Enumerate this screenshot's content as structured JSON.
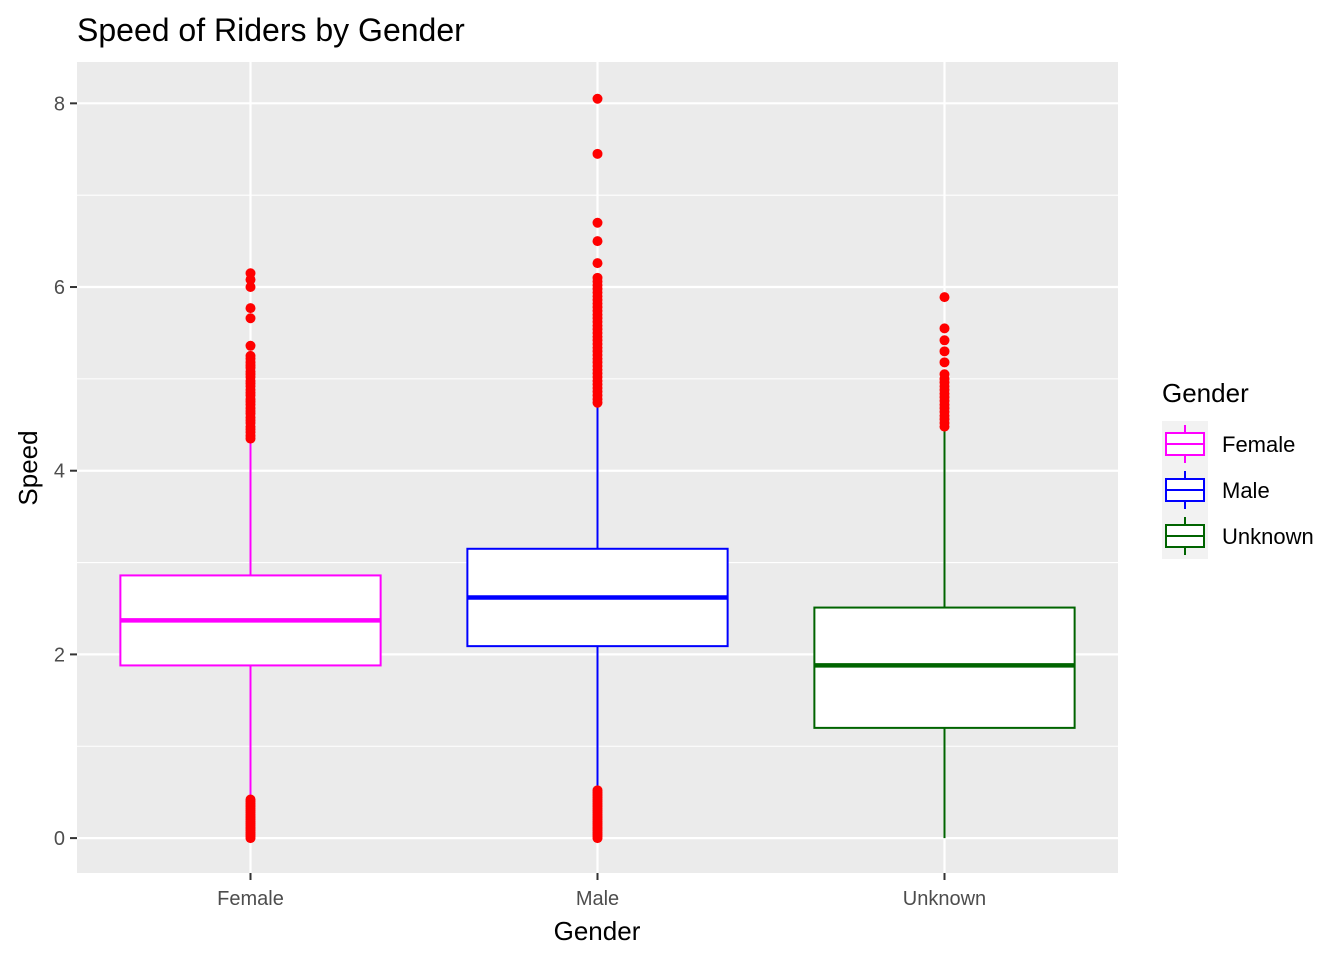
{
  "chart_data": {
    "type": "boxplot",
    "title": "Speed of Riders by Gender",
    "xlabel": "Gender",
    "ylabel": "Speed",
    "categories": [
      "Female",
      "Male",
      "Unknown"
    ],
    "ylim": [
      -0.38,
      8.45
    ],
    "yticks": [
      0,
      2,
      4,
      6,
      8
    ],
    "grid": true,
    "legend": {
      "title": "Gender",
      "position": "right",
      "entries": [
        "Female",
        "Male",
        "Unknown"
      ]
    },
    "outlier_color": "#ff0000",
    "panel_background": "#ebebeb",
    "series": [
      {
        "name": "Female",
        "color": "#ff00ff",
        "whisker_low": 0.45,
        "q1": 1.88,
        "median": 2.37,
        "q3": 2.86,
        "whisker_high": 4.32,
        "outliers": [
          0.0,
          0.02,
          0.04,
          0.06,
          0.08,
          0.1,
          0.12,
          0.14,
          0.16,
          0.18,
          0.2,
          0.22,
          0.24,
          0.26,
          0.28,
          0.3,
          0.32,
          0.34,
          0.36,
          0.38,
          0.4,
          0.42,
          4.35,
          4.38,
          4.42,
          4.45,
          4.48,
          4.52,
          4.55,
          4.58,
          4.62,
          4.65,
          4.68,
          4.72,
          4.75,
          4.78,
          4.82,
          4.85,
          4.88,
          4.92,
          4.95,
          4.98,
          5.02,
          5.05,
          5.08,
          5.12,
          5.15,
          5.18,
          5.22,
          5.25,
          5.36,
          5.66,
          5.77,
          6.0,
          6.08,
          6.15
        ]
      },
      {
        "name": "Male",
        "color": "#0000ff",
        "whisker_low": 0.55,
        "q1": 2.09,
        "median": 2.62,
        "q3": 3.15,
        "whisker_high": 4.72,
        "outliers": [
          0.0,
          0.02,
          0.04,
          0.06,
          0.08,
          0.1,
          0.12,
          0.14,
          0.16,
          0.18,
          0.2,
          0.22,
          0.24,
          0.26,
          0.28,
          0.3,
          0.32,
          0.34,
          0.36,
          0.38,
          0.4,
          0.42,
          0.44,
          0.46,
          0.48,
          0.5,
          0.52,
          4.74,
          4.78,
          4.82,
          4.86,
          4.9,
          4.94,
          4.98,
          5.02,
          5.06,
          5.1,
          5.14,
          5.18,
          5.22,
          5.26,
          5.3,
          5.34,
          5.38,
          5.42,
          5.46,
          5.5,
          5.54,
          5.58,
          5.62,
          5.66,
          5.7,
          5.74,
          5.78,
          5.82,
          5.86,
          5.9,
          5.94,
          5.98,
          6.02,
          6.06,
          6.1,
          6.26,
          6.5,
          6.7,
          7.45,
          8.05
        ]
      },
      {
        "name": "Unknown",
        "color": "#006400",
        "whisker_low": 0.0,
        "q1": 1.2,
        "median": 1.88,
        "q3": 2.51,
        "whisker_high": 4.47,
        "outliers": [
          4.48,
          4.52,
          4.56,
          4.6,
          4.64,
          4.68,
          4.72,
          4.76,
          4.8,
          4.84,
          4.88,
          4.92,
          4.96,
          5.0,
          5.05,
          5.18,
          5.3,
          5.42,
          5.55,
          5.89
        ]
      }
    ]
  }
}
